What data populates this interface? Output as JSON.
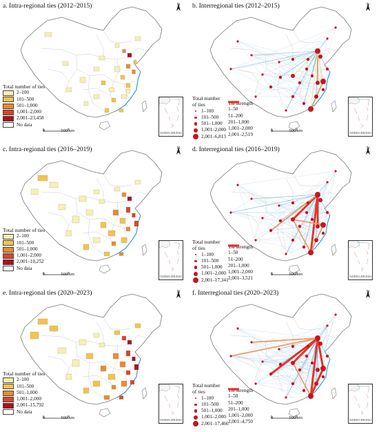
{
  "panels": [
    {
      "id": "a",
      "title": "a. Intra-regional ties (2012–2015)",
      "type": "intra",
      "legend_title": "Total number of ties",
      "legend_items": [
        "2–100",
        "101–500",
        "501–1,000",
        "1,001–2,000",
        "2,001–23,458",
        "No data"
      ]
    },
    {
      "id": "b",
      "title": "b. Interregional ties (2012–2015)",
      "type": "inter",
      "node_legend_title": [
        "Total number",
        "of ties"
      ],
      "node_legend_items": [
        "1–100",
        "101–500",
        "501–1,000",
        "1,001–2,000",
        "2,001–6,813"
      ],
      "tie_legend_title": "Tie strength",
      "tie_legend_items": [
        "1–50",
        "51–200",
        "201–1,000",
        "1,001–2,000",
        "2,001–2,519"
      ]
    },
    {
      "id": "c",
      "title": "c. Intra-regional ties (2016–2019)",
      "type": "intra",
      "legend_title": "Total number of ties",
      "legend_items": [
        "2–100",
        "101–500",
        "501–1,000",
        "1,001–2,000",
        "2,001–10,252",
        "No data"
      ]
    },
    {
      "id": "d",
      "title": "d. Interregional ties (2016–2019)",
      "type": "inter",
      "node_legend_title": [
        "Total number",
        "of ties"
      ],
      "node_legend_items": [
        "1–100",
        "101–500",
        "501–1,000",
        "1,001–2,000",
        "2,001–17,341"
      ],
      "tie_legend_title": "Tie strength",
      "tie_legend_items": [
        "1–50",
        "51–200",
        "201–1,000",
        "1,001–2,000",
        "2,001–3,521"
      ]
    },
    {
      "id": "e",
      "title": "e. Intra-regional ties (2020–2023)",
      "type": "intra",
      "legend_title": "Total number of ties",
      "legend_items": [
        "2–100",
        "101–500",
        "501–1,000",
        "1,001–2,000",
        "2,001–15,792",
        "No data"
      ]
    },
    {
      "id": "f",
      "title": "f. Interregional ties (2020–2023)",
      "type": "inter",
      "node_legend_title": [
        "Total number",
        "of ties"
      ],
      "node_legend_items": [
        "1–100",
        "101–500",
        "501–1,000",
        "1,001–2,000",
        "2,001–17,466"
      ],
      "tie_legend_title": "Tie strength",
      "tie_legend_items": [
        "1–50",
        "51–200",
        "201–1,000",
        "1,001–2,000",
        "2,001–4,750"
      ]
    }
  ],
  "scale_bar": {
    "zero": "0",
    "label": "500 km"
  },
  "north_label": "N",
  "inset_label": "NANHAI ZHUDAO",
  "colors": {
    "intra_classes": [
      "#f7f0b0",
      "#f4c24c",
      "#ec8a2e",
      "#d9452a",
      "#a8121c",
      "#ffffff"
    ],
    "node": "#c8141e",
    "tie_classes": [
      "#b6d3ea",
      "#5fa3d4",
      "#f0e29a",
      "#f19a62",
      "#e4342c"
    ],
    "boundary": "#8a8a8a"
  }
}
